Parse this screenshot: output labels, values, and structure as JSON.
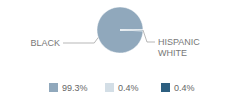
{
  "chart_data": {
    "type": "pie",
    "categories": [
      "BLACK",
      "HISPANIC",
      "WHITE"
    ],
    "values": [
      99.3,
      0.4,
      0.4
    ],
    "value_labels": [
      "99.3%",
      "0.4%",
      "0.4%"
    ],
    "colors": [
      "#90a8bc",
      "#d3dee6",
      "#2d5f80"
    ],
    "legend": "bottom"
  }
}
